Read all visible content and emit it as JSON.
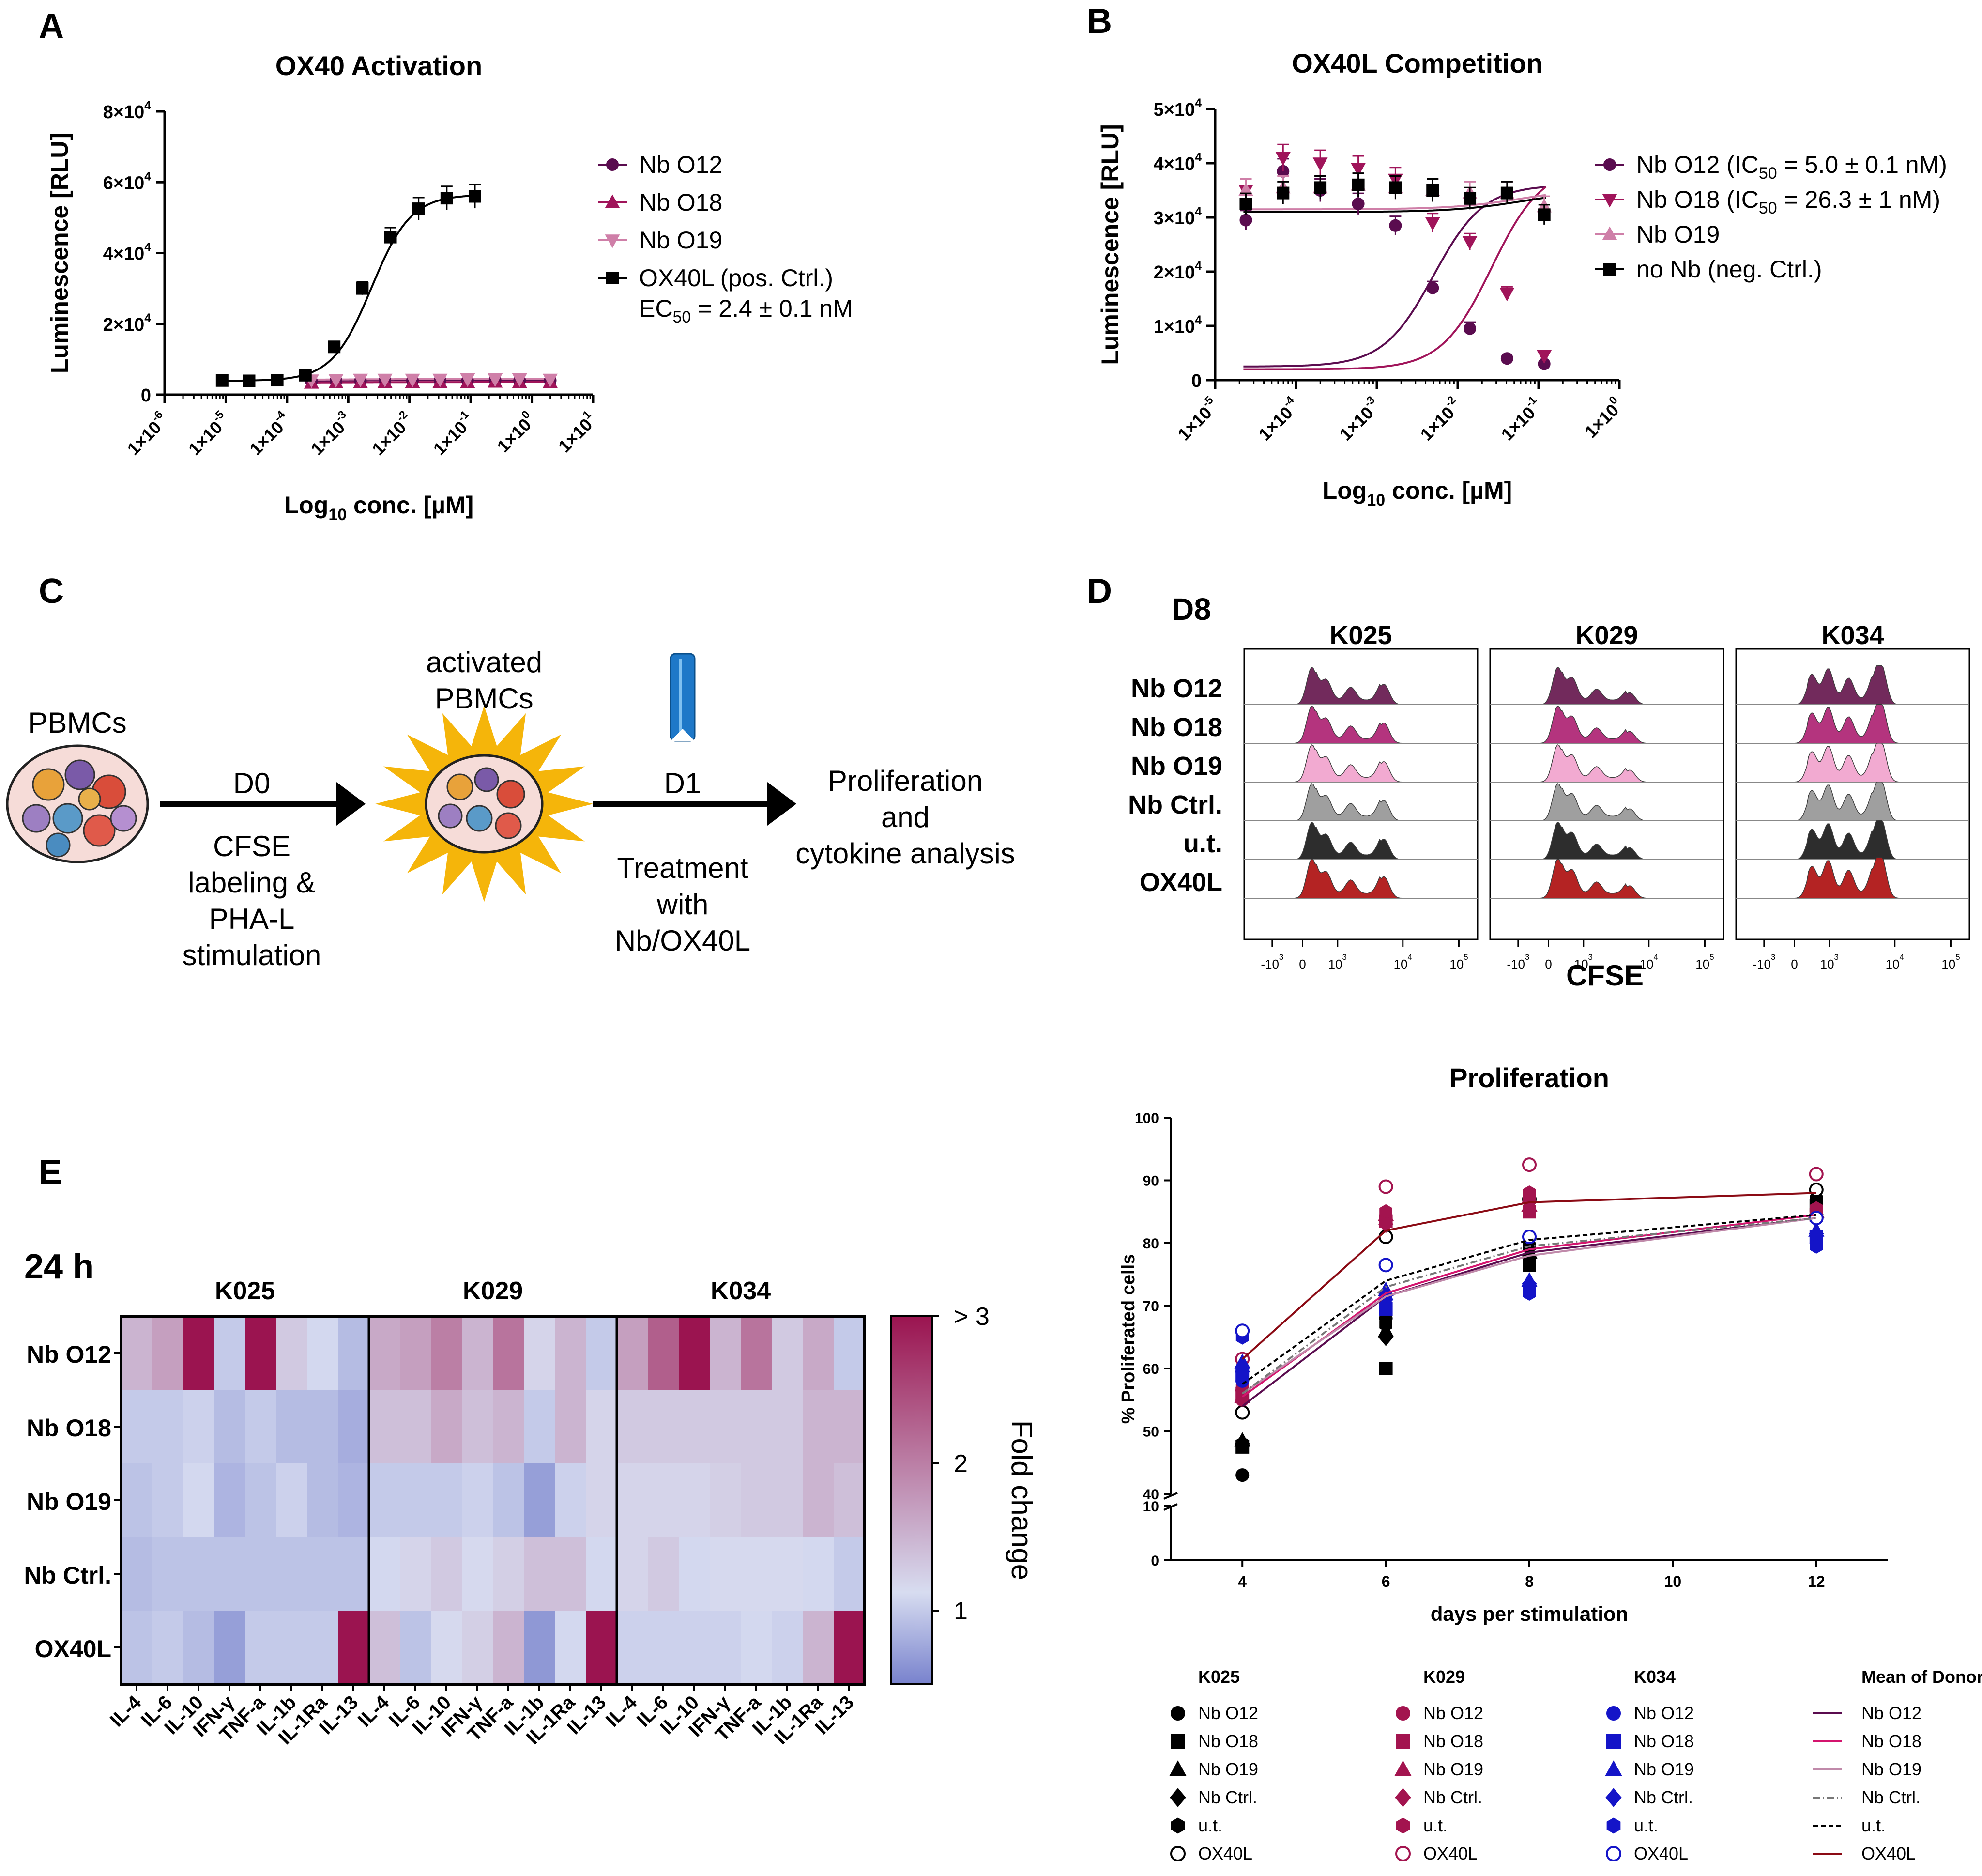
{
  "panels": {
    "a": "A",
    "b": "B",
    "c": "C",
    "d": "D",
    "e": "E"
  },
  "colors": {
    "o12": "#5a0c4f",
    "o18": "#a0145a",
    "o19": "#cf7fa8",
    "ctrl": "#000000",
    "k029": "#a3144f",
    "k034": "#1414c8",
    "ox40l": "#8b0a14",
    "nbctrl_line": "#777777"
  },
  "chart_data": [
    {
      "id": "A",
      "type": "scatter",
      "title": "OX40 Activation",
      "xlabel": "Log10 conc. [µM]",
      "ylabel": "Luminescence [RLU]",
      "xscale": "log",
      "xlim": [
        -6,
        1
      ],
      "ylim": [
        0,
        80000
      ],
      "x_ticks": [
        "1×10-6",
        "1×10-5",
        "1×10-4",
        "1×10-3",
        "1×10-2",
        "1×10-1",
        "1×100",
        "1×101"
      ],
      "y_ticks": [
        "0",
        "2×104",
        "4×104",
        "6×104",
        "8×104"
      ],
      "series": [
        {
          "name": "Nb O12",
          "marker": "circle",
          "color": "#5a0c4f",
          "log_x": [
            -3.6,
            -3.2,
            -2.8,
            -2.4,
            -1.95,
            -1.5,
            -1.05,
            -0.6,
            -0.2,
            0.3
          ],
          "y": [
            3800,
            3900,
            3900,
            4000,
            4000,
            4000,
            4000,
            4100,
            4000,
            4000
          ]
        },
        {
          "name": "Nb O18",
          "marker": "triangle-up",
          "color": "#a0145a",
          "log_x": [
            -3.6,
            -3.2,
            -2.8,
            -2.4,
            -1.95,
            -1.5,
            -1.05,
            -0.6,
            -0.2,
            0.3
          ],
          "y": [
            3300,
            3400,
            3400,
            3500,
            3500,
            3500,
            3500,
            3600,
            3500,
            3500
          ]
        },
        {
          "name": "Nb O19",
          "marker": "triangle-down",
          "color": "#cf7fa8",
          "log_x": [
            -3.6,
            -3.2,
            -2.8,
            -2.4,
            -1.95,
            -1.5,
            -1.05,
            -0.6,
            -0.2,
            0.3
          ],
          "y": [
            4100,
            4200,
            4300,
            4300,
            4300,
            4300,
            4400,
            4400,
            4400,
            4300
          ]
        },
        {
          "name": "OX40L (pos. Ctrl.)",
          "label2": "EC50 = 2.4 ± 0.1 nM",
          "marker": "square",
          "color": "#000000",
          "log_x": [
            -5.06,
            -4.62,
            -4.16,
            -3.7,
            -3.23,
            -2.77,
            -2.31,
            -1.85,
            -1.39,
            -0.93
          ],
          "y": [
            4000,
            3900,
            4100,
            5500,
            13500,
            30000,
            44500,
            52500,
            55500,
            56000
          ]
        }
      ]
    },
    {
      "id": "B",
      "type": "scatter",
      "title": "OX40L Competition",
      "xlabel": "Log10 conc. [µM]",
      "ylabel": "Luminescence [RLU]",
      "xscale": "log",
      "xlim": [
        -5,
        0
      ],
      "ylim": [
        0,
        50000
      ],
      "x_ticks": [
        "1×10-5",
        "1×10-4",
        "1×10-3",
        "1×10-2",
        "1×10-1",
        "1×100"
      ],
      "y_ticks": [
        "0",
        "1×104",
        "2×104",
        "3×104",
        "4×104",
        "5×104"
      ],
      "series": [
        {
          "name": "Nb O12 (IC50 =  5.0 ± 0.1 nM)",
          "marker": "circle",
          "color": "#5a0c4f",
          "log_x": [
            -4.62,
            -4.16,
            -3.7,
            -3.23,
            -2.77,
            -2.31,
            -1.85,
            -1.39,
            -0.93
          ],
          "y": [
            29500,
            38500,
            35000,
            32500,
            28500,
            17000,
            9500,
            4000,
            3000
          ]
        },
        {
          "name": "Nb O18 (IC50 = 26.3 ± 1 nM)",
          "marker": "triangle-down",
          "color": "#a0145a",
          "log_x": [
            -4.62,
            -4.16,
            -3.7,
            -3.23,
            -2.77,
            -2.31,
            -1.85,
            -1.39,
            -0.93
          ],
          "y": [
            35000,
            41000,
            40000,
            39000,
            37000,
            29000,
            25500,
            16000,
            4500
          ]
        },
        {
          "name": "Nb O19",
          "marker": "triangle-up",
          "color": "#cf7fa8",
          "log_x": [
            -4.62,
            -4.16,
            -3.7,
            -3.23,
            -2.77,
            -2.31,
            -1.85,
            -1.39,
            -0.93
          ],
          "y": [
            35000,
            35500,
            35500,
            36000,
            35500,
            35000,
            34500,
            34500,
            32000
          ]
        },
        {
          "name": "no Nb (neg. Ctrl.)",
          "marker": "square",
          "color": "#000000",
          "log_x": [
            -4.62,
            -4.16,
            -3.7,
            -3.23,
            -2.77,
            -2.31,
            -1.85,
            -1.39,
            -0.93
          ],
          "y": [
            32500,
            34500,
            35500,
            36000,
            35500,
            35000,
            33500,
            34500,
            30500
          ]
        }
      ]
    },
    {
      "id": "D",
      "type": "histogram-overlay",
      "title": "D8",
      "xlabel": "CFSE",
      "donors": [
        "K025",
        "K029",
        "K034"
      ],
      "rows": [
        "Nb O12",
        "Nb O18",
        "Nb O19",
        "Nb Ctrl.",
        "u.t.",
        "OX40L"
      ],
      "x_ticks": [
        "-103",
        "0",
        "103",
        "104",
        "105"
      ]
    },
    {
      "id": "E",
      "type": "heatmap",
      "title": "24 h",
      "colorbar_label": "Fold change",
      "colorbar_ticks": [
        "1",
        "2",
        "> 3"
      ],
      "vmin": 0.5,
      "vmax": 3,
      "donors": [
        "K025",
        "K029",
        "K034"
      ],
      "rows": [
        "Nb O12",
        "Nb O18",
        "Nb O19",
        "Nb Ctrl.",
        "OX40L"
      ],
      "columns": [
        "IL-4",
        "IL-6",
        "IL-10",
        "IFN-γ",
        "TNF-a",
        "IL-1b",
        "IL-1Ra",
        "IL-13"
      ],
      "values": [
        [
          1.5,
          1.7,
          3.0,
          1.0,
          3.0,
          1.3,
          1.1,
          0.9,
          1.6,
          1.7,
          2.0,
          1.5,
          2.1,
          1.2,
          1.5,
          1.0,
          1.7,
          2.3,
          3.0,
          1.5,
          2.1,
          1.3,
          1.6,
          1.0
        ],
        [
          1.0,
          1.0,
          1.05,
          0.9,
          1.0,
          0.9,
          0.9,
          0.8,
          1.4,
          1.4,
          1.6,
          1.4,
          1.5,
          1.0,
          1.5,
          1.2,
          1.3,
          1.3,
          1.3,
          1.3,
          1.3,
          1.3,
          1.5,
          1.5
        ],
        [
          0.95,
          1.0,
          1.1,
          0.85,
          0.95,
          1.05,
          0.9,
          0.85,
          1.0,
          1.0,
          1.0,
          1.05,
          0.95,
          0.7,
          1.05,
          1.2,
          1.2,
          1.2,
          1.2,
          1.25,
          1.3,
          1.3,
          1.5,
          1.4
        ],
        [
          0.9,
          0.95,
          0.95,
          0.95,
          0.95,
          0.95,
          0.95,
          0.95,
          1.1,
          1.2,
          1.3,
          1.15,
          1.25,
          1.4,
          1.4,
          1.1,
          1.2,
          1.3,
          1.1,
          1.15,
          1.15,
          1.15,
          1.1,
          1.0
        ],
        [
          0.95,
          1.0,
          0.9,
          0.7,
          1.0,
          1.0,
          1.0,
          3.0,
          1.4,
          0.95,
          1.15,
          1.25,
          1.5,
          0.65,
          1.1,
          3.0,
          1.05,
          1.05,
          1.05,
          1.05,
          1.1,
          1.05,
          1.5,
          3.0
        ]
      ]
    },
    {
      "id": "F",
      "type": "scatter-line",
      "title": "Proliferation",
      "xlabel": "days per stimulation",
      "ylabel": "% Proliferated cells",
      "xlim": [
        3,
        13
      ],
      "ylim": [
        0,
        100
      ],
      "axis_break": [
        10,
        40
      ],
      "x_ticks": [
        "4",
        "6",
        "8",
        "10",
        "12"
      ],
      "y_ticks_lower": [
        "0",
        "10"
      ],
      "y_ticks_upper": [
        "40",
        "50",
        "60",
        "70",
        "80",
        "90",
        "100"
      ],
      "groups": [
        "K025",
        "K029",
        "K034",
        "Mean of Donors"
      ],
      "items": [
        "Nb O12",
        "Nb O18",
        "Nb O19",
        "Nb Ctrl.",
        "u.t.",
        "OX40L"
      ],
      "mean_lines": [
        {
          "name": "Nb O12",
          "color": "#5a0c4f",
          "dash": "",
          "x": [
            4,
            6,
            8,
            12
          ],
          "y": [
            54,
            71.5,
            78.5,
            84
          ]
        },
        {
          "name": "Nb O18",
          "color": "#d4146e",
          "dash": "",
          "x": [
            4,
            6,
            8,
            12
          ],
          "y": [
            55.5,
            72,
            79,
            84.5
          ]
        },
        {
          "name": "Nb O19",
          "color": "#c08aaa",
          "dash": "",
          "x": [
            4,
            6,
            8,
            12
          ],
          "y": [
            56,
            71.5,
            78,
            84
          ]
        },
        {
          "name": "Nb Ctrl.",
          "color": "#777777",
          "dash": "14 6 3 6",
          "x": [
            4,
            6,
            8,
            12
          ],
          "y": [
            56,
            73,
            79.5,
            84
          ]
        },
        {
          "name": "u.t.",
          "color": "#000000",
          "dash": "10 6",
          "x": [
            4,
            6,
            8,
            12
          ],
          "y": [
            57.5,
            74,
            80.5,
            84.5
          ]
        },
        {
          "name": "OX40L",
          "color": "#8b0a14",
          "dash": "",
          "x": [
            4,
            6,
            8,
            12
          ],
          "y": [
            61.5,
            82,
            86.5,
            88
          ]
        }
      ],
      "points": [
        {
          "donor": "K025",
          "marker": "circle",
          "x": [
            4,
            6,
            8,
            12
          ],
          "y": [
            43,
            68,
            77,
            84
          ]
        },
        {
          "donor": "K025",
          "marker": "square",
          "x": [
            4,
            6,
            8,
            12
          ],
          "y": [
            47.5,
            60,
            76.5,
            86
          ]
        },
        {
          "donor": "K025",
          "marker": "triangle",
          "x": [
            4,
            6,
            8,
            12
          ],
          "y": [
            48.5,
            66,
            78.5,
            85
          ]
        },
        {
          "donor": "K025",
          "marker": "diamond",
          "x": [
            4,
            6,
            8,
            12
          ],
          "y": [
            48,
            65,
            78,
            84.5
          ]
        },
        {
          "donor": "K025",
          "marker": "hexagon",
          "x": [
            4,
            6,
            8,
            12
          ],
          "y": [
            48,
            67,
            79.5,
            87
          ]
        },
        {
          "donor": "K025",
          "marker": "open-circle",
          "x": [
            4,
            6,
            8,
            12
          ],
          "y": [
            53,
            81,
            87,
            88.5
          ]
        },
        {
          "donor": "K029",
          "marker": "circle",
          "x": [
            4,
            6,
            8,
            12
          ],
          "y": [
            55,
            84,
            87,
            84
          ]
        },
        {
          "donor": "K029",
          "marker": "square",
          "x": [
            4,
            6,
            8,
            12
          ],
          "y": [
            56,
            83.5,
            85,
            84.5
          ]
        },
        {
          "donor": "K029",
          "marker": "triangle",
          "x": [
            4,
            6,
            8,
            12
          ],
          "y": [
            55.5,
            84.5,
            86,
            85
          ]
        },
        {
          "donor": "K029",
          "marker": "diamond",
          "x": [
            4,
            6,
            8,
            12
          ],
          "y": [
            56.5,
            83,
            86.5,
            84
          ]
        },
        {
          "donor": "K029",
          "marker": "hexagon",
          "x": [
            4,
            6,
            8,
            12
          ],
          "y": [
            57,
            85,
            88,
            85.5
          ]
        },
        {
          "donor": "K029",
          "marker": "open-circle",
          "x": [
            4,
            6,
            8,
            12
          ],
          "y": [
            61.5,
            89,
            92.5,
            91
          ]
        },
        {
          "donor": "K034",
          "marker": "circle",
          "x": [
            4,
            6,
            8,
            12
          ],
          "y": [
            58,
            70,
            73,
            80
          ]
        },
        {
          "donor": "K034",
          "marker": "square",
          "x": [
            4,
            6,
            8,
            12
          ],
          "y": [
            59,
            69.5,
            72.5,
            81
          ]
        },
        {
          "donor": "K034",
          "marker": "triangle",
          "x": [
            4,
            6,
            8,
            12
          ],
          "y": [
            61,
            72.5,
            74,
            82
          ]
        },
        {
          "donor": "K034",
          "marker": "diamond",
          "x": [
            4,
            6,
            8,
            12
          ],
          "y": [
            59.5,
            71,
            73.5,
            81.5
          ]
        },
        {
          "donor": "K034",
          "marker": "hexagon",
          "x": [
            4,
            6,
            8,
            12
          ],
          "y": [
            65,
            71.5,
            72,
            79.5
          ]
        },
        {
          "donor": "K034",
          "marker": "open-circle",
          "x": [
            4,
            6,
            8,
            12
          ],
          "y": [
            66,
            76.5,
            81,
            84
          ]
        }
      ]
    }
  ],
  "schematic": {
    "pbmcs": "PBMCs",
    "activated_l1": "activated",
    "activated_l2": "PBMCs",
    "d0": "D0",
    "d1": "D1",
    "step1_l1": "CFSE",
    "step1_l2": "labeling &",
    "step1_l3": "PHA-L",
    "step1_l4": "stimulation",
    "step2_l1": "Treatment",
    "step2_l2": "with",
    "step2_l3": "Nb/OX40L",
    "result_l1": "Proliferation",
    "result_l2": "and",
    "result_l3": "cytokine analysis"
  }
}
